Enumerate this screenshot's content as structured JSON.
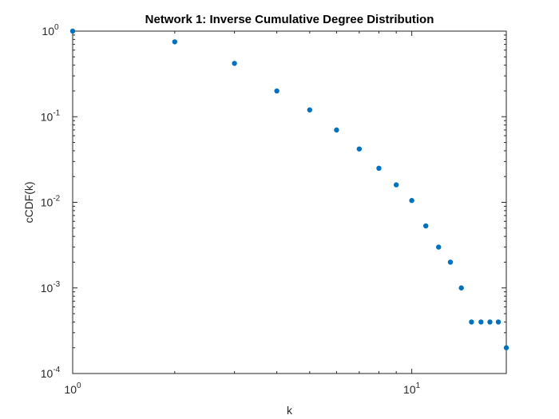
{
  "chart_data": {
    "type": "scatter",
    "title": "Network 1: Inverse Cumulative Degree Distribution",
    "xlabel": "k",
    "ylabel": "cCDF(k)",
    "xscale": "log",
    "yscale": "log",
    "xlim": [
      1,
      19
    ],
    "ylim": [
      0.0001,
      1
    ],
    "grid": false,
    "marker_color": "#0072BD",
    "x_ticks": [
      {
        "base": "10",
        "exp": "0"
      },
      {
        "base": "10",
        "exp": "1"
      }
    ],
    "y_ticks": [
      {
        "base": "10",
        "exp": "0"
      },
      {
        "base": "10",
        "exp": "-1"
      },
      {
        "base": "10",
        "exp": "-2"
      },
      {
        "base": "10",
        "exp": "-3"
      },
      {
        "base": "10",
        "exp": "-4"
      }
    ],
    "series": [
      {
        "x": [
          1,
          2,
          3,
          4,
          5,
          6,
          7,
          8,
          9,
          10,
          11,
          12,
          13,
          14,
          15,
          16,
          17,
          18,
          19
        ],
        "y": [
          1.0,
          0.75,
          0.42,
          0.2,
          0.12,
          0.07,
          0.042,
          0.025,
          0.016,
          0.0105,
          0.0053,
          0.003,
          0.002,
          0.001,
          0.0004,
          0.0004,
          0.0004,
          0.0004,
          0.0002
        ]
      }
    ]
  }
}
